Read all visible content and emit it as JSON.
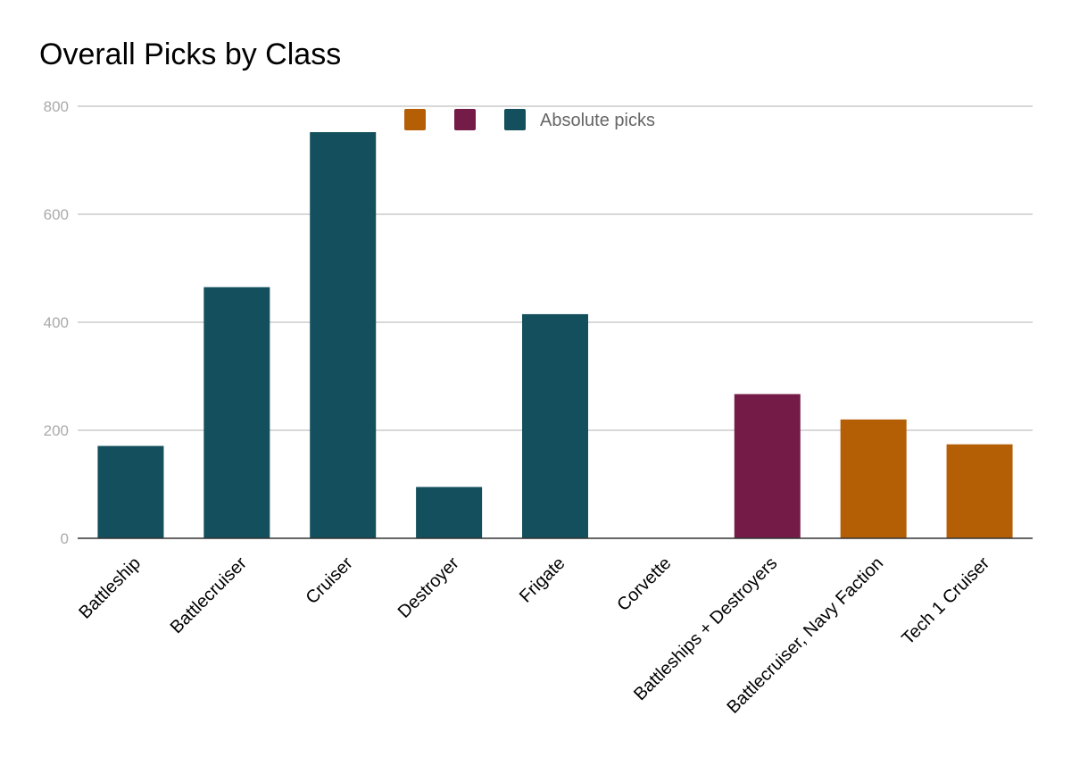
{
  "chart_data": {
    "type": "bar",
    "title": "Overall Picks by Class",
    "categories": [
      "Battleship",
      "Battlecruiser",
      "Cruiser",
      "Destroyer",
      "Frigate",
      "Corvette",
      "Battleships + Destroyers",
      "Battlecruiser, Navy Faction",
      "Tech 1 Cruiser"
    ],
    "series": [
      {
        "color": "#b45f06",
        "values": [
          null,
          null,
          null,
          null,
          null,
          null,
          null,
          220,
          174
        ]
      },
      {
        "color": "#741b47",
        "values": [
          null,
          null,
          null,
          null,
          null,
          null,
          267,
          null,
          null
        ]
      },
      {
        "name": "Absolute picks",
        "color": "#134f5c",
        "values": [
          171,
          465,
          752,
          95,
          415,
          0,
          null,
          null,
          null
        ]
      }
    ],
    "ylim": [
      0,
      800
    ],
    "yticks": [
      0,
      200,
      400,
      600,
      800
    ],
    "grid": true,
    "legend_position": "top"
  }
}
